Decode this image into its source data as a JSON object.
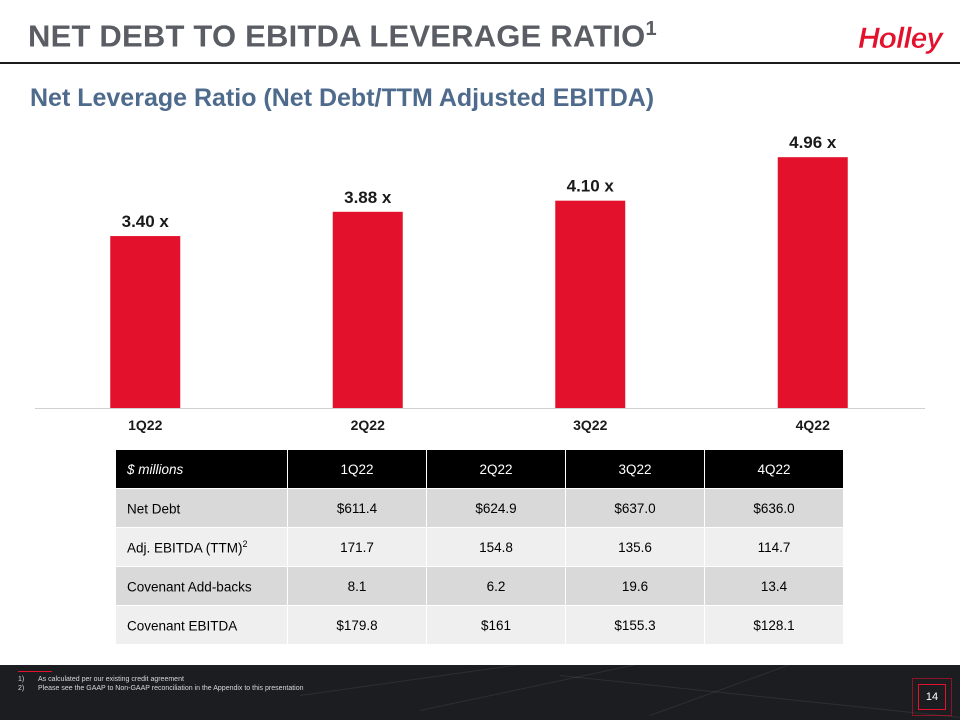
{
  "header": {
    "title": "NET DEBT TO EBITDA LEVERAGE RATIO",
    "title_sup": "1",
    "logo": "Holley"
  },
  "subtitle": "Net Leverage Ratio (Net Debt/TTM Adjusted EBITDA)",
  "chart_data": {
    "type": "bar",
    "categories": [
      "1Q22",
      "2Q22",
      "3Q22",
      "4Q22"
    ],
    "values": [
      3.4,
      3.88,
      4.1,
      4.96
    ],
    "data_labels": [
      "3.40 x",
      "3.88 x",
      "4.10 x",
      "4.96 x"
    ],
    "title": "Net Leverage Ratio (Net Debt/TTM Adjusted EBITDA)",
    "xlabel": "",
    "ylabel": "",
    "ylim": [
      0,
      5.3
    ],
    "bar_color": "#e3112b",
    "grid": false,
    "legend": "none"
  },
  "table": {
    "corner_header": "$ millions",
    "columns": [
      "1Q22",
      "2Q22",
      "3Q22",
      "4Q22"
    ],
    "rows": [
      {
        "label": "Net Debt",
        "sup": "",
        "values": [
          "$611.4",
          "$624.9",
          "$637.0",
          "$636.0"
        ]
      },
      {
        "label": "Adj. EBITDA (TTM)",
        "sup": "2",
        "values": [
          "171.7",
          "154.8",
          "135.6",
          "114.7"
        ]
      },
      {
        "label": "Covenant Add-backs",
        "sup": "",
        "values": [
          "8.1",
          "6.2",
          "19.6",
          "13.4"
        ]
      },
      {
        "label": "Covenant EBITDA",
        "sup": "",
        "values": [
          "$179.8",
          "$161",
          "$155.3",
          "$128.1"
        ]
      }
    ]
  },
  "footnotes": [
    {
      "num": "1)",
      "text": "As calculated per our existing credit agreement"
    },
    {
      "num": "2)",
      "text": "Please see the GAAP to Non-GAAP reconciliation in the Appendix to this presentation"
    }
  ],
  "page_number": "14",
  "colors": {
    "accent": "#e3112b",
    "title_gray": "#5a5e64",
    "subtitle_blue": "#4e6a8c",
    "footer_bg": "#1c1d21"
  }
}
